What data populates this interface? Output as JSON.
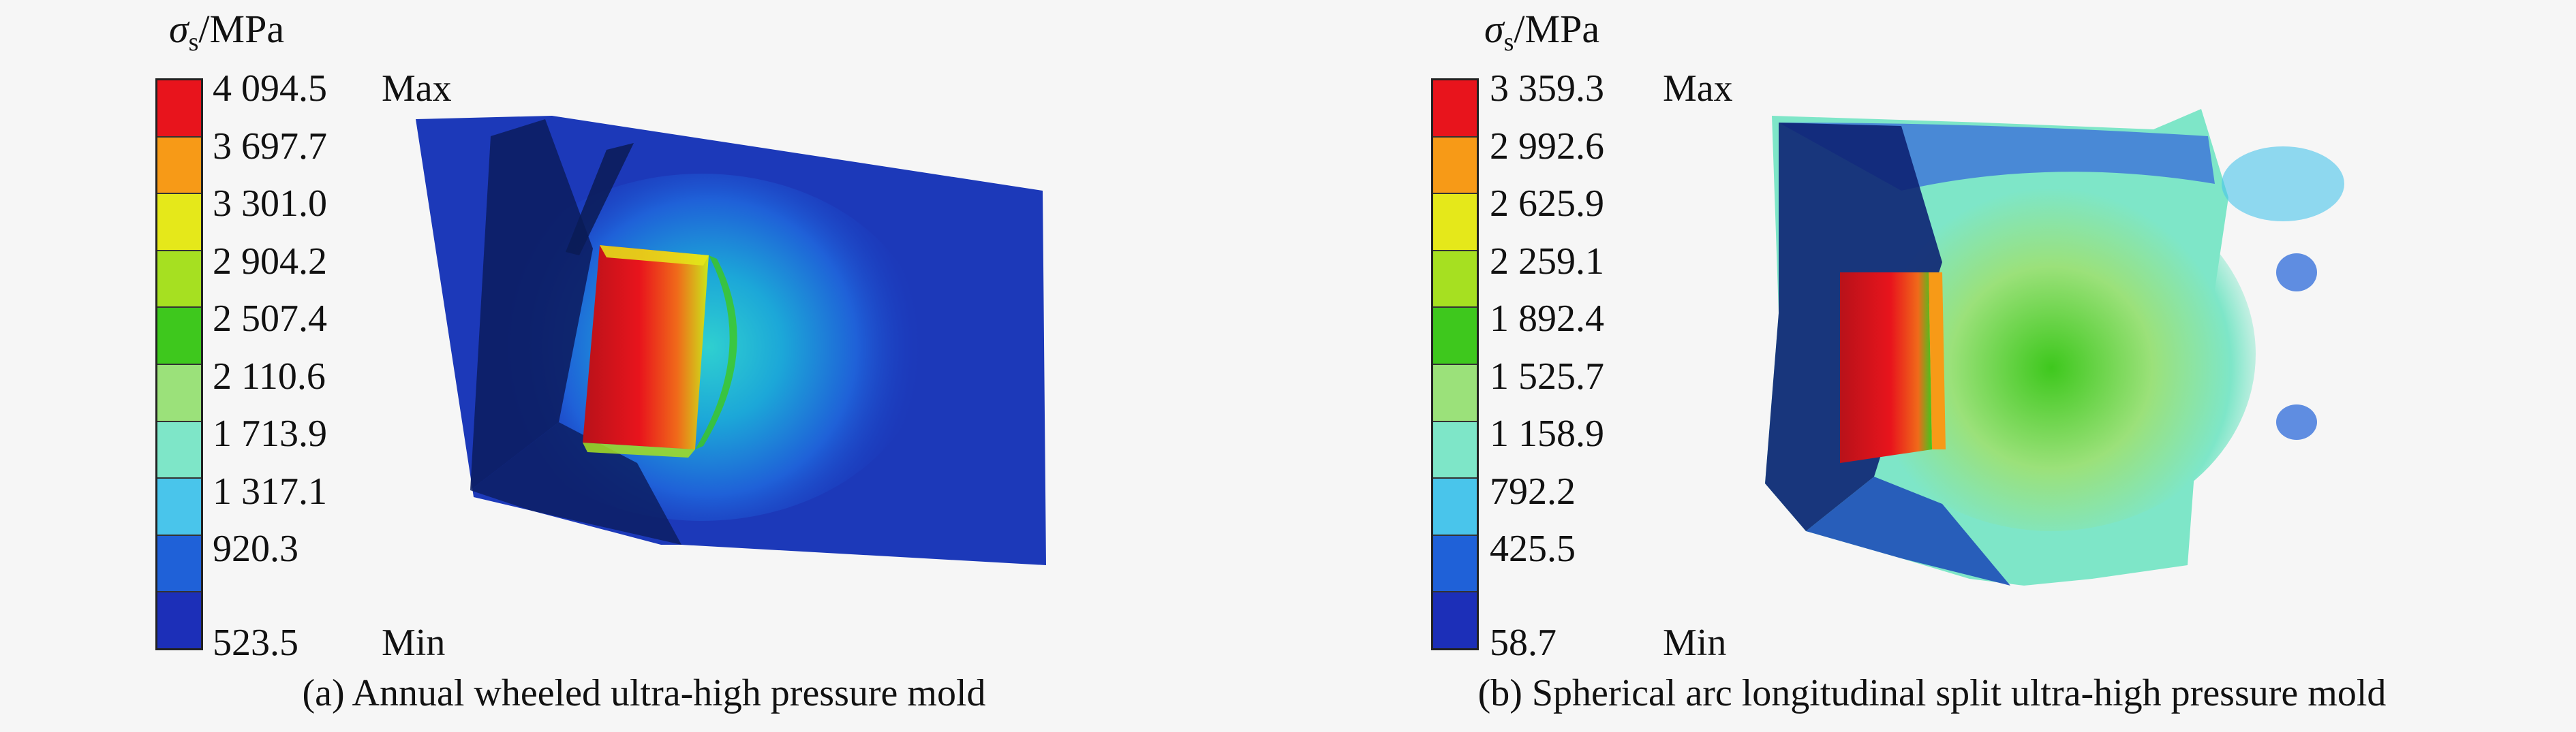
{
  "panels": [
    {
      "id": "a",
      "unit_symbol": "σ",
      "unit_subscript": "s",
      "unit_suffix": "/MPa",
      "legend_values": [
        "4 094.5",
        "3 697.7",
        "3 301.0",
        "2 904.2",
        "2 507.4",
        "2 110.6",
        "1 713.9",
        "1 317.1",
        "920.3",
        "523.5"
      ],
      "max_label": "Max",
      "min_label": "Min",
      "colors": [
        "#e8141c",
        "#f79a17",
        "#e5e81a",
        "#a6e021",
        "#3ec81d",
        "#9be17a",
        "#7ee6c8",
        "#49c5eb",
        "#1f61d8",
        "#1c2fb8"
      ],
      "caption": "(a) Annual wheeled ultra-high pressure mold"
    },
    {
      "id": "b",
      "unit_symbol": "σ",
      "unit_subscript": "s",
      "unit_suffix": "/MPa",
      "legend_values": [
        "3 359.3",
        "2 992.6",
        "2 625.9",
        "2 259.1",
        "1 892.4",
        "1 525.7",
        "1 158.9",
        "792.2",
        "425.5",
        "58.7"
      ],
      "max_label": "Max",
      "min_label": "Min",
      "colors": [
        "#e8141c",
        "#f79a17",
        "#e5e81a",
        "#a6e021",
        "#3ec81d",
        "#9be17a",
        "#7ee6c8",
        "#49c5eb",
        "#1f61d8",
        "#1c2fb8"
      ],
      "caption": "(b) Spherical arc longitudinal split ultra-high pressure mold"
    }
  ]
}
